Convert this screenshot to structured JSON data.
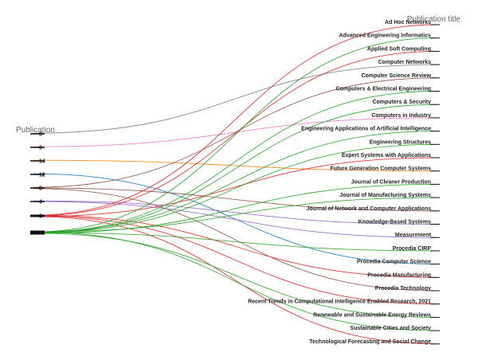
{
  "chart_data": {
    "type": "parallel-sets",
    "left_axis_title": "Publication",
    "right_axis_title": "Publication title",
    "left_categories": [
      "8",
      "6",
      "14",
      "12",
      "5",
      "4",
      "3",
      "2"
    ],
    "right_categories": [
      "Ad Hoc Networks",
      "Advanced Engineering Informatics",
      "Applied Soft Computing",
      "Computer Networks",
      "Computer Science Review",
      "Computers & Electrical Engineering",
      "Computers & Security",
      "Computers in Industry",
      "Engineering Applications of Artificial Intelligence",
      "Engineering Structures",
      "Expert Systems with Applications",
      "Future Generation Computer Systems",
      "Journal of Cleaner Production",
      "Journal of Manufacturing Systems",
      "Journal of Network and Computer Applications",
      "Knowledge-Based Systems",
      "Measurement",
      "Procedia CIRP",
      "Procedia Computer Science",
      "Procedia Manufacturing",
      "Procedia Technology",
      "Recent Trends in Computational Intelligence Enabled Research, 2021",
      "Renewable and Sustainable Energy Reviews",
      "Sustainable Cities and Society",
      "Technological Forecasting and Social Change"
    ],
    "category_colors": {
      "8": "#7f7f7f",
      "6": "#e377c2",
      "14": "#ff7f0e",
      "12": "#1f77b4",
      "5": "#8c564b",
      "4": "#9467bd",
      "3": "#d62728",
      "2": "#2ca02c"
    },
    "links": [
      {
        "from": "8",
        "to": "Computer Networks"
      },
      {
        "from": "6",
        "to": "Computers in Industry"
      },
      {
        "from": "14",
        "to": "Future Generation Computer Systems"
      },
      {
        "from": "12",
        "to": "Procedia Computer Science"
      },
      {
        "from": "5",
        "to": "Computer Science Review"
      },
      {
        "from": "5",
        "to": "Journal of Network and Computer Applications"
      },
      {
        "from": "5",
        "to": "Procedia Technology"
      },
      {
        "from": "4",
        "to": "Knowledge-Based Systems"
      },
      {
        "from": "4",
        "to": "Measurement"
      },
      {
        "from": "3",
        "to": "Ad Hoc Networks"
      },
      {
        "from": "3",
        "to": "Applied Soft Computing"
      },
      {
        "from": "3",
        "to": "Expert Systems with Applications"
      },
      {
        "from": "3",
        "to": "Procedia Manufacturing"
      },
      {
        "from": "3",
        "to": "Recent Trends in Computational Intelligence Enabled Research, 2021"
      },
      {
        "from": "3",
        "to": "Technological Forecasting and Social Change"
      },
      {
        "from": "2",
        "to": "Advanced Engineering Informatics"
      },
      {
        "from": "2",
        "to": "Computers & Electrical Engineering"
      },
      {
        "from": "2",
        "to": "Computers & Security"
      },
      {
        "from": "2",
        "to": "Engineering Applications of Artificial Intelligence"
      },
      {
        "from": "2",
        "to": "Engineering Structures"
      },
      {
        "from": "2",
        "to": "Journal of Cleaner Production"
      },
      {
        "from": "2",
        "to": "Journal of Manufacturing Systems"
      },
      {
        "from": "2",
        "to": "Procedia CIRP"
      },
      {
        "from": "2",
        "to": "Renewable and Sustainable Energy Reviews"
      },
      {
        "from": "2",
        "to": "Sustainable Cities and Society"
      }
    ]
  }
}
